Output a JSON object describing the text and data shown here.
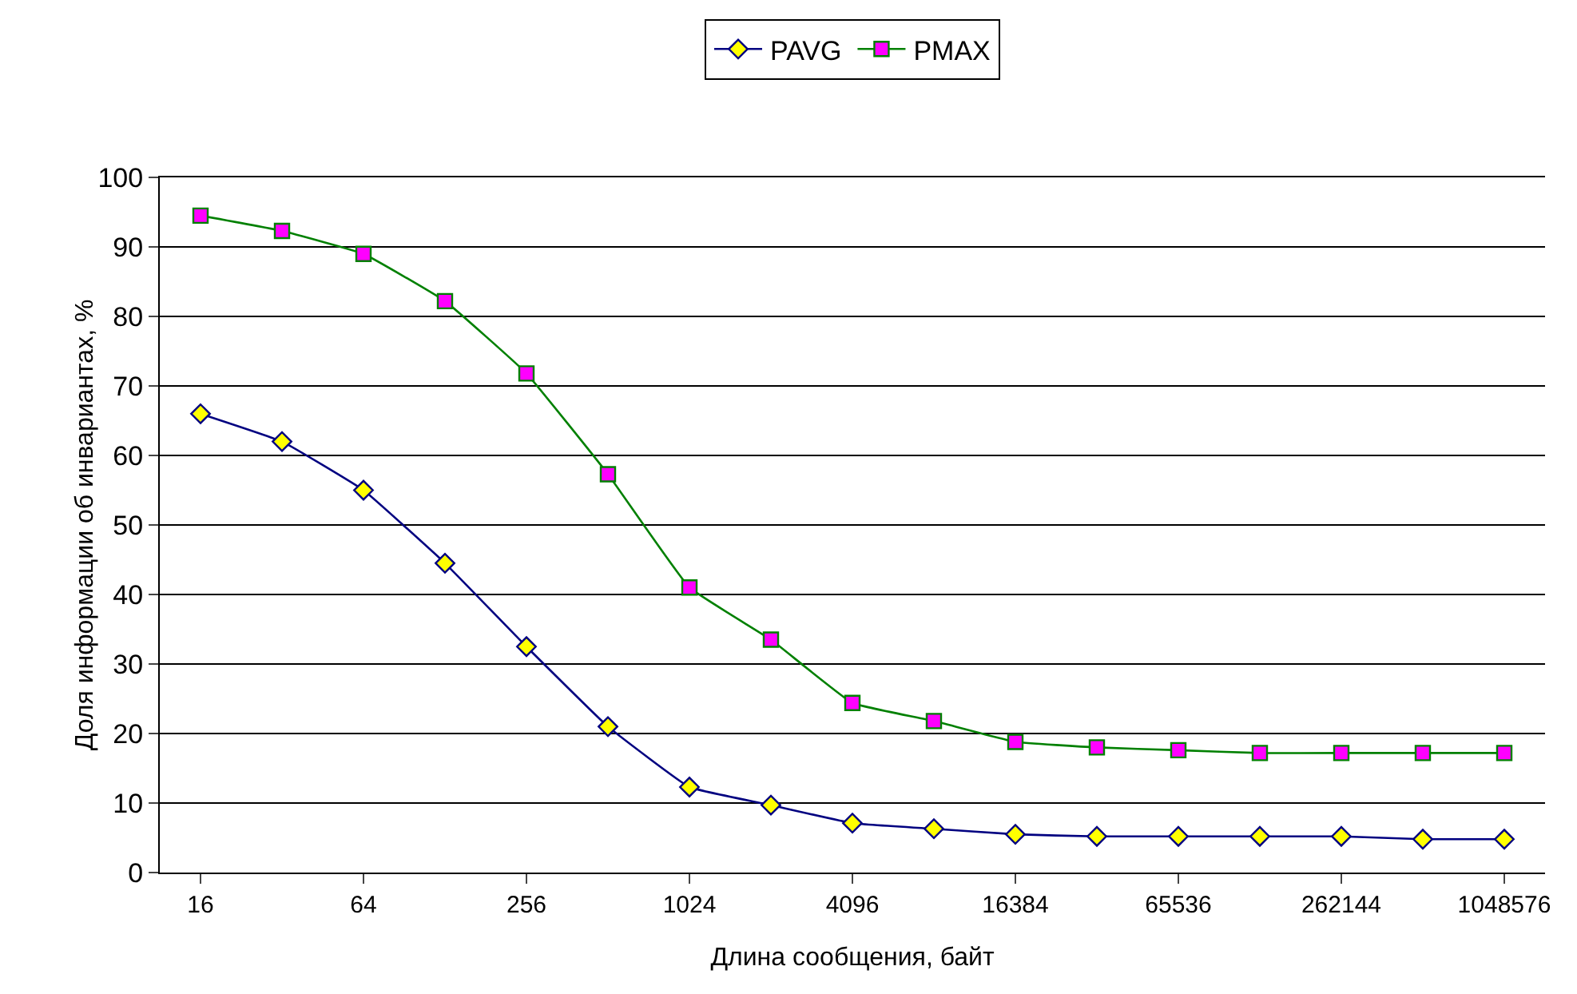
{
  "chart_data": {
    "type": "line",
    "xlabel": "Длина сообщения, байт",
    "ylabel": "Доля информации об инвариантах, %",
    "categories": [
      "16",
      null,
      "64",
      null,
      "256",
      null,
      "1024",
      null,
      "4096",
      null,
      "16384",
      null,
      "65536",
      null,
      "262144",
      null,
      "1048576"
    ],
    "series": [
      {
        "name": "PAVG",
        "color": "#000080",
        "marker": "diamond",
        "colors": [
          "#ffff00",
          "#ffff00",
          "#ffff00",
          "#ffff00",
          "#ffff00",
          "#ffff00",
          "#ffff00",
          "#ffff00",
          "#ffff00",
          "#ffff00",
          "#ffff00",
          "#ffff00",
          "#ffff00",
          "#ffff00",
          "#ffff00",
          "#ffff00",
          "#ffff00"
        ],
        "values": [
          66,
          62,
          55,
          44.5,
          32.5,
          21,
          12.3,
          9.7,
          7.1,
          6.3,
          5.5,
          5.2,
          5.2,
          5.2,
          5.2,
          4.8,
          4.8
        ]
      },
      {
        "name": "PMAX",
        "color": "#008000",
        "marker": "square",
        "colors": [
          "#ff00ff",
          "#ff00ff",
          "#ff00ff",
          "#ff00ff",
          "#ff00ff",
          "#ff00ff",
          "#ff00ff",
          "#ff00ff",
          "#ff00ff",
          "#ff00ff",
          "#ff00ff",
          "#ff00ff",
          "#ff00ff",
          "#ff00ff",
          "#ff00ff",
          "#ff00ff",
          "#ff00ff"
        ],
        "values": [
          94.5,
          92.3,
          89,
          82.2,
          71.8,
          57.3,
          41,
          33.5,
          24.4,
          21.8,
          18.8,
          18,
          17.6,
          17.2,
          17.2,
          17.2,
          17.2
        ]
      }
    ],
    "ylim": [
      0,
      100
    ],
    "yticks": [
      0,
      10,
      20,
      30,
      40,
      50,
      60,
      70,
      80,
      90,
      100
    ],
    "grid": "y",
    "legend": "top"
  }
}
